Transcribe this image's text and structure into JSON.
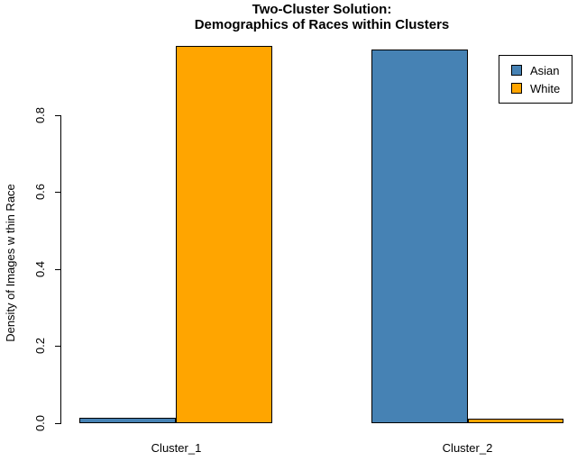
{
  "title": {
    "line1": "Two-Cluster Solution:",
    "line2": "Demographics of Races within Clusters"
  },
  "y_axis": {
    "label": "Density of Images w thin Race",
    "ticks": [
      {
        "label": "0.0",
        "value": 0.0
      },
      {
        "label": "0.2",
        "value": 0.2
      },
      {
        "label": "0.4",
        "value": 0.4
      },
      {
        "label": "0.6",
        "value": 0.6
      },
      {
        "label": "0.8",
        "value": 0.8
      }
    ]
  },
  "legend": {
    "entries": [
      {
        "label": "Asian",
        "color": "#4682B4"
      },
      {
        "label": "White",
        "color": "#FFA500"
      }
    ]
  },
  "chart_data": {
    "type": "bar",
    "grouped": true,
    "categories": [
      "Cluster_1",
      "Cluster_2"
    ],
    "series": [
      {
        "name": "Asian",
        "color": "#4682B4",
        "values": [
          0.015,
          0.97
        ]
      },
      {
        "name": "White",
        "color": "#FFA500",
        "values": [
          0.98,
          0.012
        ]
      }
    ],
    "title": "Two-Cluster Solution: Demographics of Races within Clusters",
    "xlabel": "",
    "ylabel": "Density of Images w thin Race",
    "ylim": [
      0,
      1.0
    ],
    "yticks": [
      0.0,
      0.2,
      0.4,
      0.6,
      0.8
    ],
    "grid": false,
    "bar_border_color": "#000000",
    "legend_position": "top-right"
  }
}
